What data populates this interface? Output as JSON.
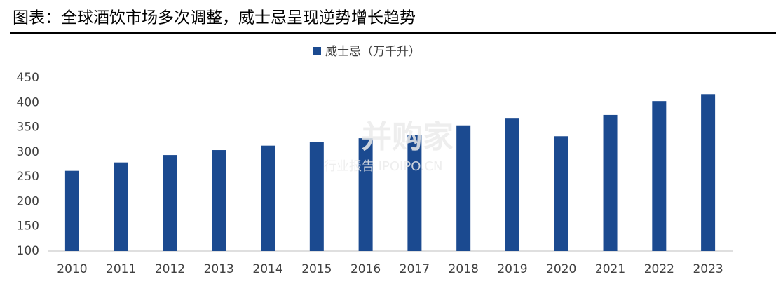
{
  "chart_data": {
    "type": "bar",
    "title": "图表：全球酒饮市场多次调整，威士忌呈现逆势增长趋势",
    "categories": [
      "2010",
      "2011",
      "2012",
      "2013",
      "2014",
      "2015",
      "2016",
      "2017",
      "2018",
      "2019",
      "2020",
      "2021",
      "2022",
      "2023"
    ],
    "series": [
      {
        "name": "威士忌（万千升）",
        "color": "#1b4a90",
        "values": [
          262,
          279,
          294,
          304,
          313,
          321,
          328,
          334,
          354,
          369,
          332,
          375,
          403,
          417
        ]
      }
    ],
    "ylim": [
      100,
      450
    ],
    "yticks": [
      100,
      150,
      200,
      250,
      300,
      350,
      400,
      450
    ],
    "grid": false,
    "legend": "top",
    "watermark": {
      "brand": "并购家",
      "tagline": "行业报告 IPOIPO.CN"
    }
  }
}
